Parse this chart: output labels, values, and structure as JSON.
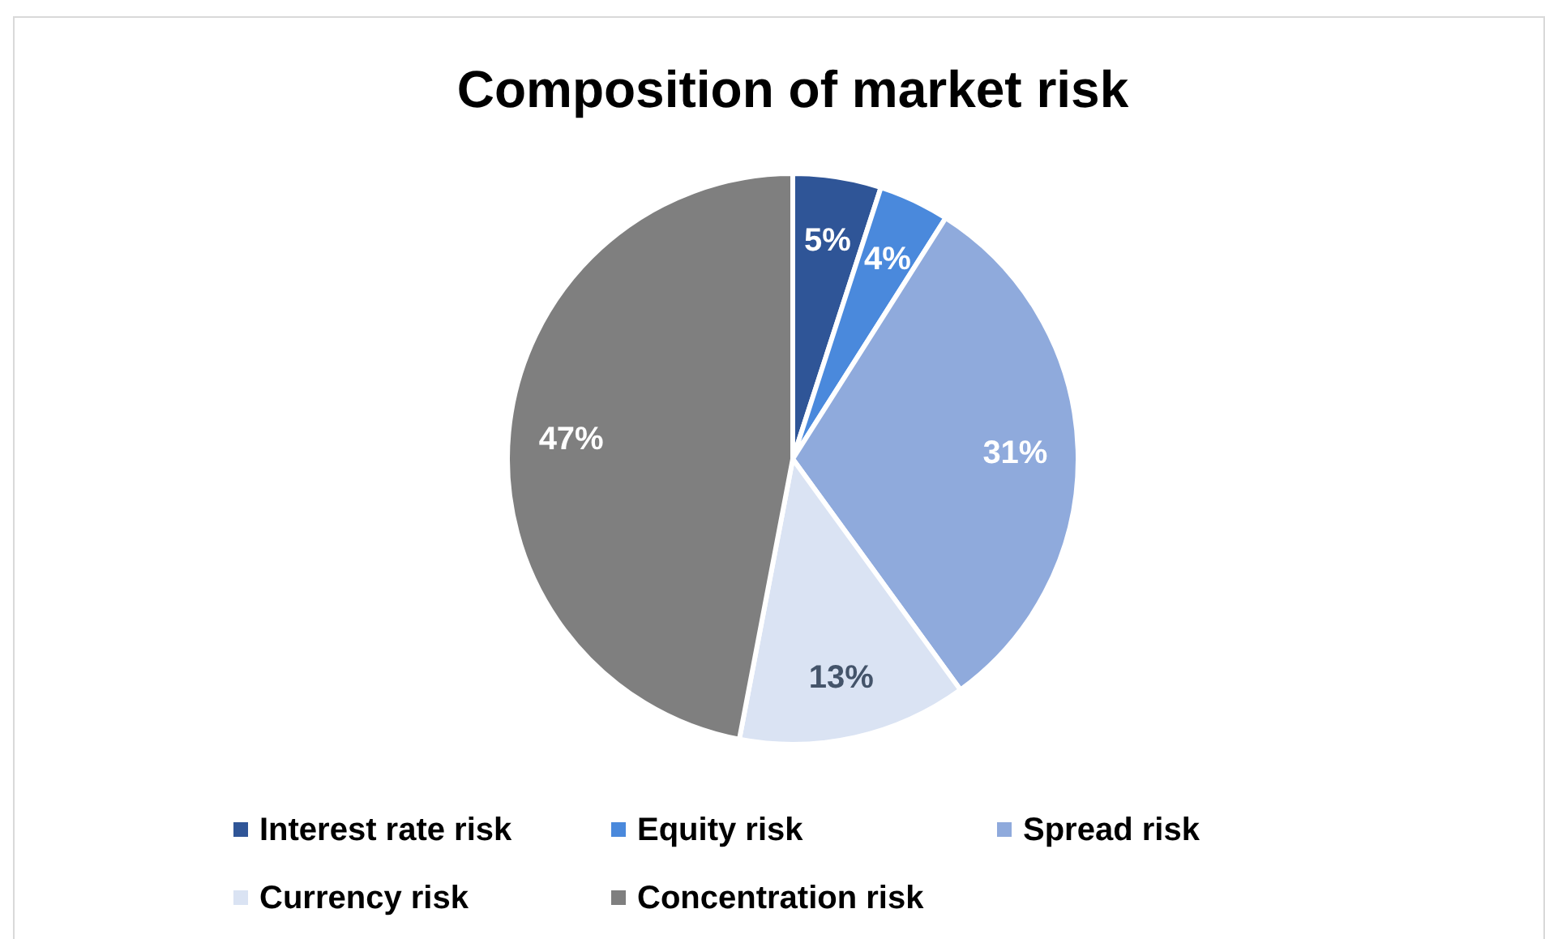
{
  "chart_data": {
    "type": "pie",
    "title": "Composition of market risk",
    "categories": [
      "Interest rate risk",
      "Equity risk",
      "Spread risk",
      "Currency risk",
      "Concentration risk"
    ],
    "values": [
      5,
      4,
      31,
      13,
      47
    ],
    "colors": [
      "#2f5597",
      "#4a89dc",
      "#8faadc",
      "#dae3f3",
      "#7f7f7f"
    ],
    "value_labels": [
      "5%",
      "4%",
      "31%",
      "13%",
      "47%"
    ],
    "legend": "bottom"
  }
}
